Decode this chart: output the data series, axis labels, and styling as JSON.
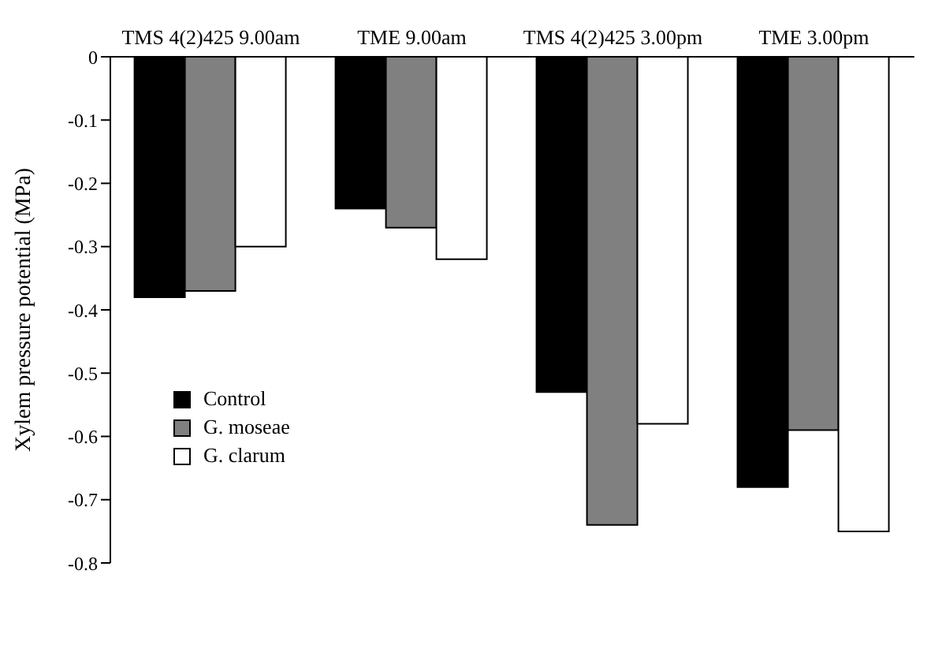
{
  "chart_data": {
    "type": "bar",
    "ylabel": "Xylem pressure potential (MPa)",
    "categories": [
      "TMS 4(2)425 9.00am",
      "TME 9.00am",
      "TMS 4(2)425 3.00pm",
      "TME 3.00pm"
    ],
    "series": [
      {
        "name": "Control",
        "color": "#000000",
        "values": [
          -0.38,
          -0.24,
          -0.53,
          -0.68
        ]
      },
      {
        "name": "G. moseae",
        "color": "#808080",
        "values": [
          -0.37,
          -0.27,
          -0.74,
          -0.59
        ]
      },
      {
        "name": "G. clarum",
        "color": "#ffffff",
        "values": [
          -0.3,
          -0.32,
          -0.58,
          -0.75
        ]
      }
    ],
    "ylim": [
      -0.8,
      0
    ],
    "yticks": [
      0,
      -0.1,
      -0.2,
      -0.3,
      -0.4,
      -0.5,
      -0.6,
      -0.7,
      -0.8
    ],
    "grid": false,
    "legend": "left"
  }
}
